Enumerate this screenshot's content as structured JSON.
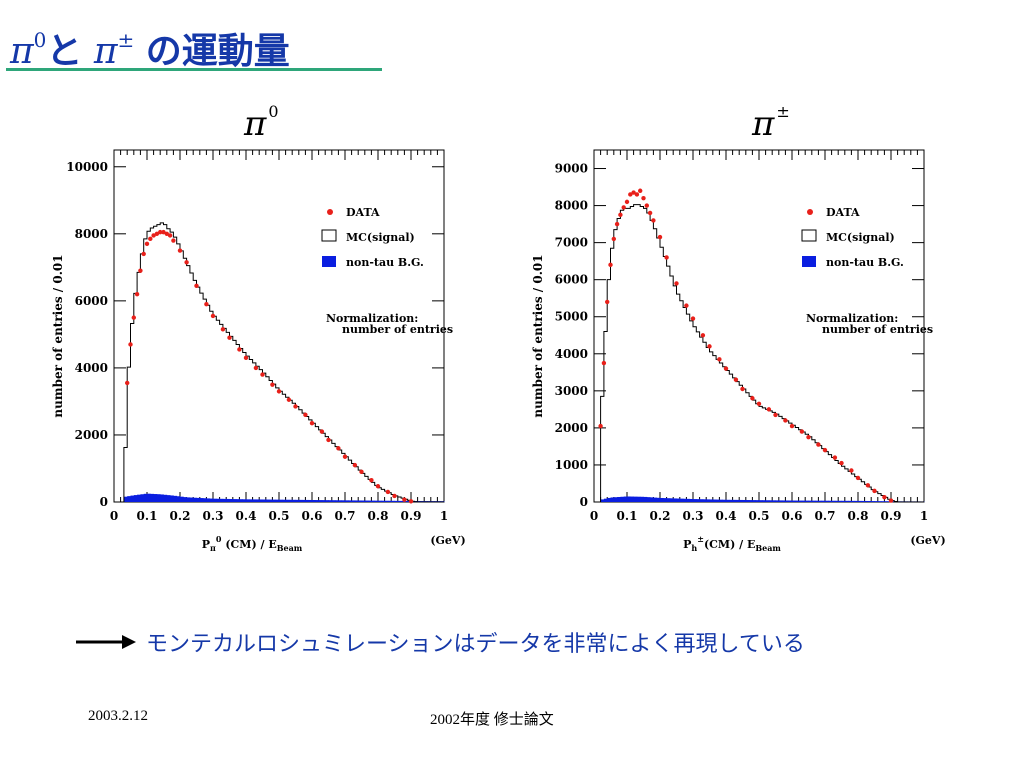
{
  "slide": {
    "title_pi": "π",
    "title_sup0": "0",
    "title_to": "と",
    "title_sup_pm": "±",
    "title_rest": "の運動量",
    "conclusion": "モンテカルロシュミレーションはデータを非常によく再現している",
    "footer_date": "2003.2.12",
    "footer_center": "2002年度 修士論文"
  },
  "chart_data": [
    {
      "type": "histogram",
      "title_symbol": "π",
      "title_sup": "0",
      "ylabel": "number of entries  / 0.01",
      "xlabel_main": "P",
      "xlabel_sub": "π",
      "xlabel_sup": "0",
      "xlabel_rest": " (CM) / E",
      "xlabel_beam": "Beam",
      "xunit": "(GeV)",
      "xlim": [
        0,
        1
      ],
      "ylim": [
        0,
        10500
      ],
      "xticks": [
        "0",
        "0.1",
        "0.2",
        "0.3",
        "0.4",
        "0.5",
        "0.6",
        "0.7",
        "0.8",
        "0.9",
        "1"
      ],
      "yticks": [
        "0",
        "2000",
        "4000",
        "6000",
        "8000",
        "10000"
      ],
      "legend": [
        "DATA",
        "MC(signal)",
        "non-tau B.G."
      ],
      "note": [
        "Normalization:",
        "number of entries"
      ],
      "colors": {
        "data": "#e8201a",
        "mc": "#000000",
        "bg": "#0a1ee0"
      },
      "mc_points": [
        [
          0.03,
          0
        ],
        [
          0.04,
          3250
        ],
        [
          0.05,
          4800
        ],
        [
          0.06,
          5850
        ],
        [
          0.07,
          6600
        ],
        [
          0.08,
          7100
        ],
        [
          0.09,
          7700
        ],
        [
          0.1,
          8000
        ],
        [
          0.11,
          8150
        ],
        [
          0.12,
          8200
        ],
        [
          0.13,
          8250
        ],
        [
          0.14,
          8300
        ],
        [
          0.15,
          8350
        ],
        [
          0.16,
          8200
        ],
        [
          0.18,
          8000
        ],
        [
          0.2,
          7600
        ],
        [
          0.25,
          6500
        ],
        [
          0.3,
          5600
        ],
        [
          0.35,
          5000
        ],
        [
          0.4,
          4400
        ],
        [
          0.45,
          3900
        ],
        [
          0.5,
          3350
        ],
        [
          0.55,
          2900
        ],
        [
          0.6,
          2400
        ],
        [
          0.65,
          1900
        ],
        [
          0.7,
          1400
        ],
        [
          0.75,
          900
        ],
        [
          0.8,
          450
        ],
        [
          0.85,
          200
        ],
        [
          0.9,
          30
        ],
        [
          0.92,
          0
        ]
      ],
      "data_points": [
        [
          0.04,
          3550
        ],
        [
          0.05,
          4700
        ],
        [
          0.06,
          5500
        ],
        [
          0.07,
          6200
        ],
        [
          0.08,
          6900
        ],
        [
          0.09,
          7400
        ],
        [
          0.1,
          7700
        ],
        [
          0.11,
          7850
        ],
        [
          0.12,
          7950
        ],
        [
          0.13,
          8000
        ],
        [
          0.14,
          8050
        ],
        [
          0.15,
          8050
        ],
        [
          0.16,
          8000
        ],
        [
          0.17,
          7950
        ],
        [
          0.18,
          7800
        ],
        [
          0.2,
          7500
        ],
        [
          0.22,
          7150
        ],
        [
          0.25,
          6450
        ],
        [
          0.28,
          5900
        ],
        [
          0.3,
          5550
        ],
        [
          0.33,
          5150
        ],
        [
          0.35,
          4900
        ],
        [
          0.38,
          4550
        ],
        [
          0.4,
          4300
        ],
        [
          0.43,
          4000
        ],
        [
          0.45,
          3800
        ],
        [
          0.48,
          3500
        ],
        [
          0.5,
          3300
        ],
        [
          0.53,
          3050
        ],
        [
          0.55,
          2850
        ],
        [
          0.58,
          2600
        ],
        [
          0.6,
          2350
        ],
        [
          0.63,
          2100
        ],
        [
          0.65,
          1850
        ],
        [
          0.68,
          1600
        ],
        [
          0.7,
          1350
        ],
        [
          0.73,
          1100
        ],
        [
          0.75,
          900
        ],
        [
          0.78,
          650
        ],
        [
          0.8,
          470
        ],
        [
          0.83,
          300
        ],
        [
          0.85,
          180
        ],
        [
          0.88,
          70
        ],
        [
          0.9,
          20
        ]
      ],
      "bg_points": [
        [
          0.03,
          150
        ],
        [
          0.06,
          200
        ],
        [
          0.1,
          250
        ],
        [
          0.14,
          230
        ],
        [
          0.18,
          190
        ],
        [
          0.22,
          140
        ],
        [
          0.3,
          100
        ],
        [
          0.4,
          80
        ],
        [
          0.5,
          70
        ],
        [
          0.6,
          60
        ],
        [
          0.7,
          50
        ],
        [
          0.8,
          40
        ],
        [
          0.9,
          30
        ],
        [
          1.0,
          25
        ]
      ]
    },
    {
      "type": "histogram",
      "title_symbol": "π",
      "title_sup": "±",
      "ylabel": "number of entries / 0.01",
      "xlabel_main": "P",
      "xlabel_sub": "h",
      "xlabel_sup": "±",
      "xlabel_rest": "(CM) / E",
      "xlabel_beam": "Beam",
      "xunit": "(GeV)",
      "xlim": [
        0,
        1
      ],
      "ylim": [
        0,
        9500
      ],
      "xticks": [
        "0",
        "0.1",
        "0.2",
        "0.3",
        "0.4",
        "0.5",
        "0.6",
        "0.7",
        "0.8",
        "0.9",
        "1"
      ],
      "yticks": [
        "0",
        "1000",
        "2000",
        "3000",
        "4000",
        "5000",
        "6000",
        "7000",
        "8000",
        "9000"
      ],
      "legend": [
        "DATA",
        "MC(signal)",
        "non-tau B.G."
      ],
      "note": [
        "Normalization:",
        "number of entries"
      ],
      "colors": {
        "data": "#e8201a",
        "mc": "#000000",
        "bg": "#0a1ee0"
      },
      "mc_points": [
        [
          0.02,
          0
        ],
        [
          0.02,
          2000
        ],
        [
          0.03,
          3700
        ],
        [
          0.04,
          5500
        ],
        [
          0.05,
          6500
        ],
        [
          0.06,
          7200
        ],
        [
          0.07,
          7500
        ],
        [
          0.08,
          7800
        ],
        [
          0.09,
          7950
        ],
        [
          0.1,
          7900
        ],
        [
          0.11,
          7950
        ],
        [
          0.12,
          8000
        ],
        [
          0.13,
          8050
        ],
        [
          0.14,
          8000
        ],
        [
          0.16,
          7900
        ],
        [
          0.18,
          7500
        ],
        [
          0.2,
          7000
        ],
        [
          0.22,
          6500
        ],
        [
          0.25,
          5700
        ],
        [
          0.3,
          4800
        ],
        [
          0.35,
          4100
        ],
        [
          0.4,
          3600
        ],
        [
          0.45,
          3100
        ],
        [
          0.5,
          2600
        ],
        [
          0.55,
          2400
        ],
        [
          0.6,
          2100
        ],
        [
          0.65,
          1800
        ],
        [
          0.7,
          1400
        ],
        [
          0.75,
          1000
        ],
        [
          0.8,
          650
        ],
        [
          0.85,
          300
        ],
        [
          0.9,
          50
        ],
        [
          0.92,
          0
        ]
      ],
      "data_points": [
        [
          0.02,
          2050
        ],
        [
          0.03,
          3750
        ],
        [
          0.04,
          5400
        ],
        [
          0.05,
          6400
        ],
        [
          0.06,
          7100
        ],
        [
          0.07,
          7500
        ],
        [
          0.08,
          7750
        ],
        [
          0.09,
          7950
        ],
        [
          0.1,
          8100
        ],
        [
          0.11,
          8300
        ],
        [
          0.12,
          8350
        ],
        [
          0.13,
          8300
        ],
        [
          0.14,
          8400
        ],
        [
          0.15,
          8200
        ],
        [
          0.16,
          8000
        ],
        [
          0.17,
          7800
        ],
        [
          0.18,
          7600
        ],
        [
          0.2,
          7150
        ],
        [
          0.22,
          6600
        ],
        [
          0.25,
          5900
        ],
        [
          0.28,
          5300
        ],
        [
          0.3,
          4950
        ],
        [
          0.33,
          4500
        ],
        [
          0.35,
          4200
        ],
        [
          0.38,
          3850
        ],
        [
          0.4,
          3600
        ],
        [
          0.43,
          3300
        ],
        [
          0.45,
          3050
        ],
        [
          0.48,
          2800
        ],
        [
          0.5,
          2650
        ],
        [
          0.53,
          2500
        ],
        [
          0.55,
          2350
        ],
        [
          0.58,
          2200
        ],
        [
          0.6,
          2050
        ],
        [
          0.63,
          1900
        ],
        [
          0.65,
          1750
        ],
        [
          0.68,
          1550
        ],
        [
          0.7,
          1400
        ],
        [
          0.73,
          1200
        ],
        [
          0.75,
          1050
        ],
        [
          0.78,
          850
        ],
        [
          0.8,
          650
        ],
        [
          0.83,
          450
        ],
        [
          0.85,
          300
        ],
        [
          0.88,
          130
        ],
        [
          0.9,
          40
        ]
      ],
      "bg_points": [
        [
          0.02,
          60
        ],
        [
          0.05,
          120
        ],
        [
          0.1,
          150
        ],
        [
          0.15,
          140
        ],
        [
          0.2,
          110
        ],
        [
          0.3,
          80
        ],
        [
          0.4,
          60
        ],
        [
          0.5,
          50
        ],
        [
          0.6,
          40
        ],
        [
          0.7,
          35
        ],
        [
          0.8,
          30
        ],
        [
          0.9,
          20
        ],
        [
          1.0,
          15
        ]
      ]
    }
  ]
}
